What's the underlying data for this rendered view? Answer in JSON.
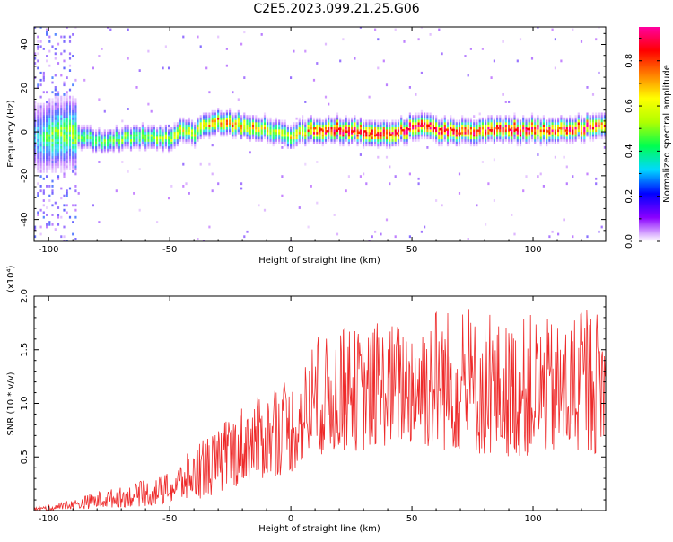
{
  "title": "C2E5.2023.099.21.25.G06",
  "chart_data": [
    {
      "type": "heatmap",
      "xlabel": "Height of straight line (km)",
      "ylabel": "Frequency (Hz)",
      "xlim": [
        -106,
        130
      ],
      "ylim": [
        -50,
        48
      ],
      "xticks": [
        -100,
        -50,
        0,
        50,
        100
      ],
      "yticks": [
        -40,
        -20,
        0,
        20,
        40
      ],
      "colorbar": {
        "label": "Normalized spectral amplitude",
        "range": [
          0,
          0.95
        ],
        "ticks": [
          0.0,
          0.2,
          0.4,
          0.6,
          0.8
        ],
        "tick_labels": [
          "0.0",
          "0.2",
          "0.4",
          "0.6",
          "0.8"
        ],
        "colors": [
          "#ffffff",
          "#8a00ff",
          "#0000ff",
          "#00d8ff",
          "#00ff50",
          "#b0ff00",
          "#ffff00",
          "#ff7f00",
          "#ff0000",
          "#ff00a0"
        ]
      },
      "ridge": {
        "x": [
          -106,
          -100,
          -90,
          -80,
          -70,
          -60,
          -50,
          -45,
          -40,
          -35,
          -30,
          -25,
          -20,
          -15,
          -10,
          -5,
          0,
          5,
          10,
          20,
          30,
          40,
          50,
          55,
          60,
          70,
          80,
          90,
          100,
          110,
          120,
          130
        ],
        "freq": [
          -2,
          -1,
          -1,
          -4,
          -3,
          -2,
          -3,
          1,
          0,
          3,
          5,
          4,
          3,
          2,
          1,
          0,
          -2,
          0,
          1,
          1,
          0,
          -1,
          2,
          3,
          1,
          0,
          1,
          1,
          1,
          1,
          2,
          3
        ],
        "peak_amplitude": [
          0.3,
          0.45,
          0.5,
          0.45,
          0.5,
          0.5,
          0.55,
          0.6,
          0.6,
          0.65,
          0.75,
          0.7,
          0.7,
          0.7,
          0.6,
          0.55,
          0.6,
          0.65,
          0.85,
          0.9,
          0.9,
          0.9,
          0.9,
          0.95,
          0.9,
          0.85,
          0.85,
          0.9,
          0.9,
          0.85,
          0.85,
          0.8
        ]
      }
    },
    {
      "type": "line",
      "xlabel": "Height of straight line (km)",
      "ylabel": "SNR (10 * v/v)",
      "y_multiplier": "(x10⁴)",
      "xlim": [
        -106,
        130
      ],
      "ylim": [
        0,
        20000
      ],
      "xticks": [
        -100,
        -50,
        0,
        50,
        100
      ],
      "yticks": [
        5000,
        10000,
        15000,
        20000
      ],
      "ytick_labels": [
        "0.5",
        "1.0",
        "1.5",
        "2.0"
      ],
      "series": [
        {
          "color": "#ee2a2a",
          "envelope_x": [
            -106,
            -100,
            -90,
            -80,
            -70,
            -60,
            -50,
            -40,
            -30,
            -20,
            -10,
            0,
            10,
            20,
            30,
            40,
            50,
            60,
            70,
            80,
            90,
            100,
            110,
            120,
            130
          ],
          "envelope_y": [
            300,
            500,
            1000,
            1800,
            2200,
            2800,
            3500,
            6000,
            7500,
            10000,
            11000,
            12000,
            15500,
            17000,
            17000,
            17500,
            18000,
            19500,
            18500,
            18000,
            17500,
            18500,
            17500,
            18500,
            19000
          ],
          "baseline_y": [
            0,
            0,
            100,
            200,
            300,
            400,
            600,
            1000,
            1500,
            2500,
            3000,
            3500,
            5000,
            5500,
            5500,
            6000,
            6000,
            5500,
            5500,
            5000,
            5000,
            5000,
            5000,
            5000,
            5500
          ]
        }
      ]
    }
  ]
}
